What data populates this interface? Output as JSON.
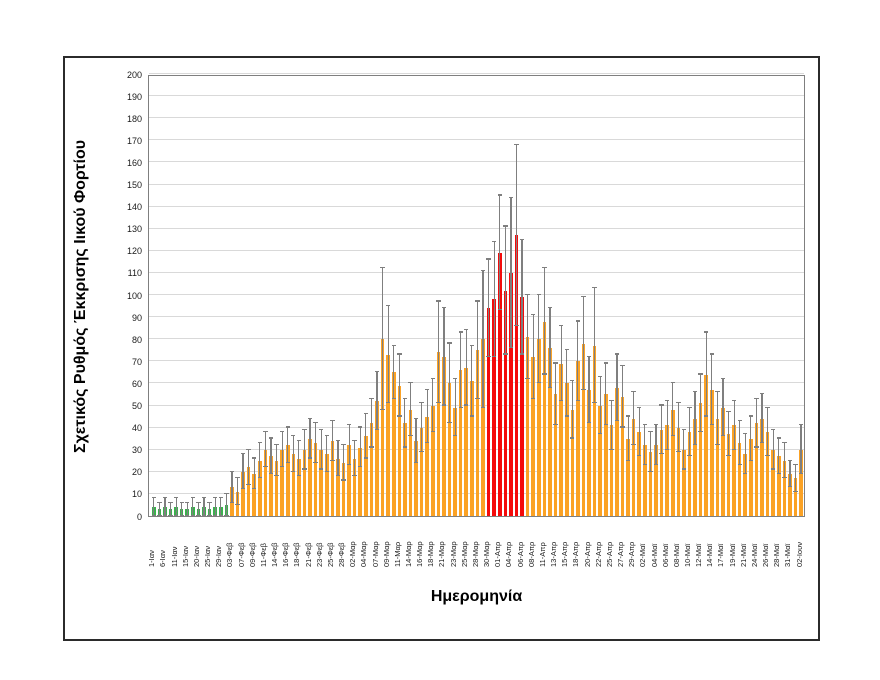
{
  "figure": {
    "background": "#ffffff",
    "border_color": "#2b2b2b",
    "plot_border_color": "#7f7f7f",
    "gridline_color": "#d9d9d9"
  },
  "chart_data": {
    "type": "bar",
    "title": "",
    "xlabel": "Ημερομηνία",
    "ylabel": "Σχετικός Ρυθμός Έκκρισης Ιικού Φορτίου",
    "ylim": [
      0,
      200
    ],
    "ytick_step": 10,
    "grid": true,
    "error_bars": true,
    "error_bar_color": "#7f7f7f",
    "legend": "none",
    "label_every_n_bars": 2,
    "tick_labels": [
      "1-Ιαν",
      "6-Ιαν",
      "11-Ιαν",
      "15-Ιαν",
      "20-Ιαν",
      "25-Ιαν",
      "29-Ιαν",
      "03-Φεβ",
      "07-Φεβ",
      "09-Φεβ",
      "11-Φεβ",
      "14-Φεβ",
      "16-Φεβ",
      "18-Φεβ",
      "21-Φεβ",
      "23-Φεβ",
      "25-Φεβ",
      "28-Φεβ",
      "02-Μαρ",
      "04-Μαρ",
      "07-Μαρ",
      "09-Μαρ",
      "11-Μαρ",
      "14-Μαρ",
      "16-Μαρ",
      "18-Μαρ",
      "21-Μαρ",
      "23-Μαρ",
      "25-Μαρ",
      "28-Μαρ",
      "30-Μαρ",
      "01-Απρ",
      "04-Απρ",
      "06-Απρ",
      "08-Απρ",
      "11-Απρ",
      "13-Απρ",
      "15-Απρ",
      "18-Απρ",
      "20-Απρ",
      "22-Απρ",
      "25-Απρ",
      "27-Απρ",
      "29-Απρ",
      "02-Μαϊ",
      "04-Μαϊ",
      "06-Μαϊ",
      "08-Μαϊ",
      "10-Μαϊ",
      "12-Μαϊ",
      "14-Μαϊ",
      "17-Μαϊ",
      "19-Μαϊ",
      "21-Μαϊ",
      "24-Μαϊ",
      "26-Μαϊ",
      "28-Μαϊ",
      "31-Μαϊ",
      "02-Ιουν"
    ],
    "colors": {
      "g": "#3cb04e",
      "o": "#fba225",
      "r": "#f40b0b"
    },
    "bars": [
      {
        "v": 4,
        "e": 4,
        "c": "g"
      },
      {
        "v": 3,
        "e": 3,
        "c": "g"
      },
      {
        "v": 4,
        "e": 4,
        "c": "g"
      },
      {
        "v": 3,
        "e": 3,
        "c": "g"
      },
      {
        "v": 4,
        "e": 4,
        "c": "g"
      },
      {
        "v": 3,
        "e": 3,
        "c": "g"
      },
      {
        "v": 3,
        "e": 3,
        "c": "g"
      },
      {
        "v": 4,
        "e": 4,
        "c": "g"
      },
      {
        "v": 3,
        "e": 3,
        "c": "g"
      },
      {
        "v": 4,
        "e": 4,
        "c": "g"
      },
      {
        "v": 3,
        "e": 3,
        "c": "g"
      },
      {
        "v": 4,
        "e": 4,
        "c": "g"
      },
      {
        "v": 4,
        "e": 4,
        "c": "g"
      },
      {
        "v": 5,
        "e": 5,
        "c": "g"
      },
      {
        "v": 13,
        "e": 7,
        "c": "o"
      },
      {
        "v": 11,
        "e": 6,
        "c": "o"
      },
      {
        "v": 20,
        "e": 8,
        "c": "o"
      },
      {
        "v": 22,
        "e": 8,
        "c": "o"
      },
      {
        "v": 19,
        "e": 7,
        "c": "o"
      },
      {
        "v": 25,
        "e": 8,
        "c": "o"
      },
      {
        "v": 30,
        "e": 8,
        "c": "o"
      },
      {
        "v": 27,
        "e": 8,
        "c": "o"
      },
      {
        "v": 25,
        "e": 7,
        "c": "o"
      },
      {
        "v": 30,
        "e": 8,
        "c": "o"
      },
      {
        "v": 32,
        "e": 8,
        "c": "o"
      },
      {
        "v": 28,
        "e": 8,
        "c": "o"
      },
      {
        "v": 26,
        "e": 8,
        "c": "o"
      },
      {
        "v": 30,
        "e": 9,
        "c": "o"
      },
      {
        "v": 35,
        "e": 9,
        "c": "o"
      },
      {
        "v": 33,
        "e": 9,
        "c": "o"
      },
      {
        "v": 30,
        "e": 9,
        "c": "o"
      },
      {
        "v": 28,
        "e": 8,
        "c": "o"
      },
      {
        "v": 34,
        "e": 9,
        "c": "o"
      },
      {
        "v": 26,
        "e": 8,
        "c": "o"
      },
      {
        "v": 24,
        "e": 8,
        "c": "o"
      },
      {
        "v": 32,
        "e": 9,
        "c": "o"
      },
      {
        "v": 26,
        "e": 8,
        "c": "o"
      },
      {
        "v": 31,
        "e": 9,
        "c": "o"
      },
      {
        "v": 36,
        "e": 10,
        "c": "o"
      },
      {
        "v": 42,
        "e": 11,
        "c": "o"
      },
      {
        "v": 52,
        "e": 13,
        "c": "o"
      },
      {
        "v": 80,
        "e": 32,
        "c": "o"
      },
      {
        "v": 73,
        "e": 22,
        "c": "o"
      },
      {
        "v": 65,
        "e": 12,
        "c": "o"
      },
      {
        "v": 59,
        "e": 14,
        "c": "o"
      },
      {
        "v": 42,
        "e": 11,
        "c": "o"
      },
      {
        "v": 48,
        "e": 12,
        "c": "o"
      },
      {
        "v": 34,
        "e": 10,
        "c": "o"
      },
      {
        "v": 40,
        "e": 11,
        "c": "o"
      },
      {
        "v": 45,
        "e": 12,
        "c": "o"
      },
      {
        "v": 50,
        "e": 12,
        "c": "o"
      },
      {
        "v": 74,
        "e": 23,
        "c": "o"
      },
      {
        "v": 72,
        "e": 22,
        "c": "o"
      },
      {
        "v": 60,
        "e": 18,
        "c": "o"
      },
      {
        "v": 49,
        "e": 13,
        "c": "o"
      },
      {
        "v": 66,
        "e": 17,
        "c": "o"
      },
      {
        "v": 67,
        "e": 17,
        "c": "o"
      },
      {
        "v": 61,
        "e": 16,
        "c": "o"
      },
      {
        "v": 75,
        "e": 22,
        "c": "o"
      },
      {
        "v": 80,
        "e": 31,
        "c": "o"
      },
      {
        "v": 94,
        "e": 22,
        "c": "r"
      },
      {
        "v": 98,
        "e": 26,
        "c": "r"
      },
      {
        "v": 119,
        "e": 26,
        "c": "r"
      },
      {
        "v": 102,
        "e": 29,
        "c": "r"
      },
      {
        "v": 110,
        "e": 34,
        "c": "r"
      },
      {
        "v": 127,
        "e": 41,
        "c": "r"
      },
      {
        "v": 99,
        "e": 26,
        "c": "r"
      },
      {
        "v": 81,
        "e": 19,
        "c": "o"
      },
      {
        "v": 72,
        "e": 19,
        "c": "o"
      },
      {
        "v": 80,
        "e": 20,
        "c": "o"
      },
      {
        "v": 88,
        "e": 24,
        "c": "o"
      },
      {
        "v": 76,
        "e": 18,
        "c": "o"
      },
      {
        "v": 55,
        "e": 14,
        "c": "o"
      },
      {
        "v": 69,
        "e": 17,
        "c": "o"
      },
      {
        "v": 60,
        "e": 15,
        "c": "o"
      },
      {
        "v": 48,
        "e": 13,
        "c": "o"
      },
      {
        "v": 70,
        "e": 18,
        "c": "o"
      },
      {
        "v": 78,
        "e": 21,
        "c": "o"
      },
      {
        "v": 57,
        "e": 15,
        "c": "o"
      },
      {
        "v": 77,
        "e": 26,
        "c": "o"
      },
      {
        "v": 50,
        "e": 13,
        "c": "o"
      },
      {
        "v": 55,
        "e": 14,
        "c": "o"
      },
      {
        "v": 41,
        "e": 11,
        "c": "o"
      },
      {
        "v": 58,
        "e": 15,
        "c": "o"
      },
      {
        "v": 54,
        "e": 14,
        "c": "o"
      },
      {
        "v": 35,
        "e": 10,
        "c": "o"
      },
      {
        "v": 44,
        "e": 12,
        "c": "o"
      },
      {
        "v": 38,
        "e": 11,
        "c": "o"
      },
      {
        "v": 32,
        "e": 9,
        "c": "o"
      },
      {
        "v": 29,
        "e": 9,
        "c": "o"
      },
      {
        "v": 32,
        "e": 9,
        "c": "o"
      },
      {
        "v": 39,
        "e": 11,
        "c": "o"
      },
      {
        "v": 41,
        "e": 11,
        "c": "o"
      },
      {
        "v": 48,
        "e": 12,
        "c": "o"
      },
      {
        "v": 40,
        "e": 11,
        "c": "o"
      },
      {
        "v": 30,
        "e": 9,
        "c": "o"
      },
      {
        "v": 38,
        "e": 11,
        "c": "o"
      },
      {
        "v": 44,
        "e": 12,
        "c": "o"
      },
      {
        "v": 51,
        "e": 13,
        "c": "o"
      },
      {
        "v": 64,
        "e": 19,
        "c": "o"
      },
      {
        "v": 57,
        "e": 16,
        "c": "o"
      },
      {
        "v": 44,
        "e": 12,
        "c": "o"
      },
      {
        "v": 49,
        "e": 13,
        "c": "o"
      },
      {
        "v": 37,
        "e": 10,
        "c": "o"
      },
      {
        "v": 41,
        "e": 11,
        "c": "o"
      },
      {
        "v": 33,
        "e": 10,
        "c": "o"
      },
      {
        "v": 28,
        "e": 9,
        "c": "o"
      },
      {
        "v": 35,
        "e": 10,
        "c": "o"
      },
      {
        "v": 42,
        "e": 11,
        "c": "o"
      },
      {
        "v": 44,
        "e": 11,
        "c": "o"
      },
      {
        "v": 38,
        "e": 11,
        "c": "o"
      },
      {
        "v": 30,
        "e": 9,
        "c": "o"
      },
      {
        "v": 27,
        "e": 8,
        "c": "o"
      },
      {
        "v": 25,
        "e": 8,
        "c": "o"
      },
      {
        "v": 19,
        "e": 6,
        "c": "o"
      },
      {
        "v": 17,
        "e": 6,
        "c": "o"
      },
      {
        "v": 30,
        "e": 11,
        "c": "o"
      }
    ]
  }
}
